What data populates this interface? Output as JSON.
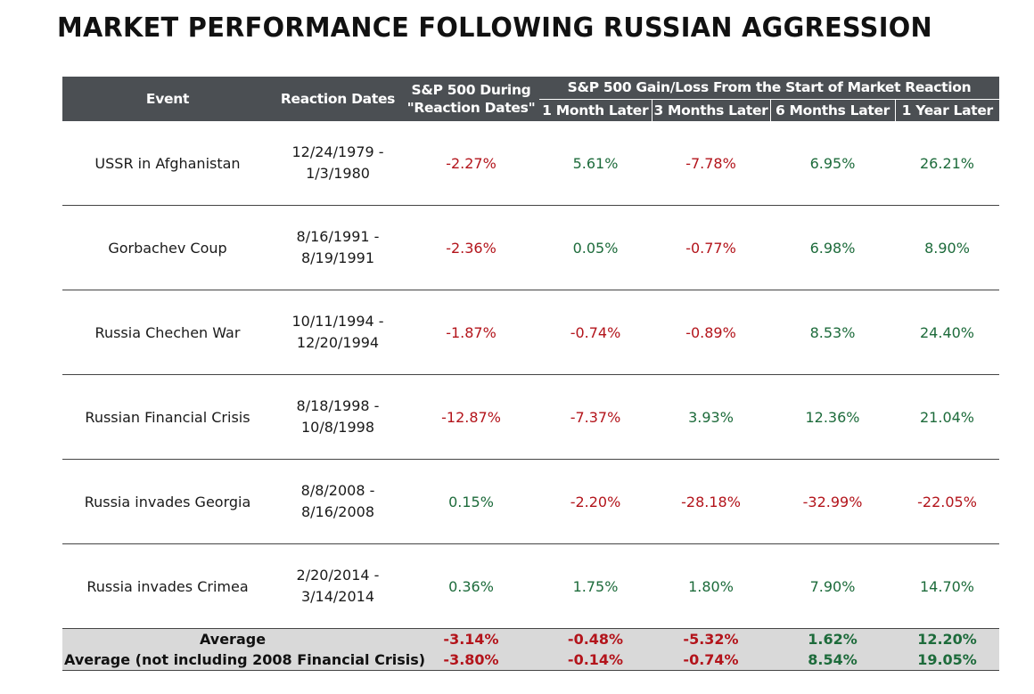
{
  "title": "MARKET PERFORMANCE FOLLOWING RUSSIAN AGGRESSION",
  "header": {
    "event": "Event",
    "reaction_dates": "Reaction Dates",
    "during_line1": "S&P 500 During",
    "during_line2": "\"Reaction Dates\"",
    "group": "S&P 500 Gain/Loss From the Start of Market Reaction",
    "m1": "1 Month Later",
    "m3": "3 Months Later",
    "m6": "6 Months Later",
    "y1": "1 Year Later"
  },
  "rows": [
    {
      "event": "USSR in Afghanistan",
      "dates_start": "12/24/1979 -",
      "dates_end": "1/3/1980",
      "during": "-2.27%",
      "m1": "5.61%",
      "m3": "-7.78%",
      "m6": "6.95%",
      "y1": "26.21%"
    },
    {
      "event": "Gorbachev Coup",
      "dates_start": "8/16/1991 -",
      "dates_end": "8/19/1991",
      "during": "-2.36%",
      "m1": "0.05%",
      "m3": "-0.77%",
      "m6": "6.98%",
      "y1": "8.90%"
    },
    {
      "event": "Russia Chechen War",
      "dates_start": "10/11/1994 -",
      "dates_end": "12/20/1994",
      "during": "-1.87%",
      "m1": "-0.74%",
      "m3": "-0.89%",
      "m6": "8.53%",
      "y1": "24.40%"
    },
    {
      "event": "Russian Financial Crisis",
      "dates_start": "8/18/1998 -",
      "dates_end": "10/8/1998",
      "during": "-12.87%",
      "m1": "-7.37%",
      "m3": "3.93%",
      "m6": "12.36%",
      "y1": "21.04%"
    },
    {
      "event": "Russia invades Georgia",
      "dates_start": "8/8/2008 -",
      "dates_end": "8/16/2008",
      "during": "0.15%",
      "m1": "-2.20%",
      "m3": "-28.18%",
      "m6": "-32.99%",
      "y1": "-22.05%"
    },
    {
      "event": "Russia invades Crimea",
      "dates_start": "2/20/2014 -",
      "dates_end": "3/14/2014",
      "during": "0.36%",
      "m1": "1.75%",
      "m3": "1.80%",
      "m6": "7.90%",
      "y1": "14.70%"
    }
  ],
  "averages": [
    {
      "label": "Average",
      "during": "-3.14%",
      "m1": "-0.48%",
      "m3": "-5.32%",
      "m6": "1.62%",
      "y1": "12.20%"
    },
    {
      "label": "Average (not including 2008 Financial Crisis)",
      "during": "-3.80%",
      "m1": "-0.14%",
      "m3": "-0.74%",
      "m6": "8.54%",
      "y1": "19.05%"
    }
  ],
  "colors": {
    "header_bg": "#4b4f53",
    "negative": "#b3141b",
    "positive": "#1d6b3b",
    "average_bg": "#d9d9d9"
  }
}
